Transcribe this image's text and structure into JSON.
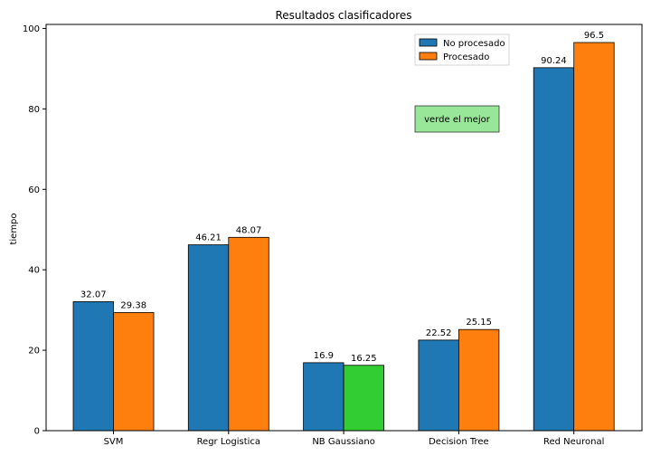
{
  "chart_data": {
    "type": "bar",
    "title": "Resultados clasificadores",
    "xlabel": "",
    "ylabel": "tiempo",
    "ylim": [
      0,
      101
    ],
    "yticks": [
      0,
      20,
      40,
      60,
      80,
      100
    ],
    "categories": [
      "SVM",
      "Regr Logistica",
      "NB Gaussiano",
      "Decision Tree",
      "Red Neuronal"
    ],
    "series": [
      {
        "name": "No procesado",
        "color": "#1f77b4",
        "values": [
          32.07,
          46.21,
          16.9,
          22.52,
          90.24
        ],
        "labels": [
          "32.07",
          "46.21",
          "16.9",
          "22.52",
          "90.24"
        ]
      },
      {
        "name": "Procesado",
        "color": "#ff7f0e",
        "values": [
          29.38,
          48.07,
          16.25,
          25.15,
          96.5
        ],
        "labels": [
          "29.38",
          "48.07",
          "16.25",
          "25.15",
          "96.5"
        ]
      }
    ],
    "highlight": {
      "series": 1,
      "index": 2,
      "color": "#32cd32"
    },
    "legend_position": "top-right",
    "annotation": {
      "text": "verde el mejor",
      "color": "#98e698"
    }
  }
}
